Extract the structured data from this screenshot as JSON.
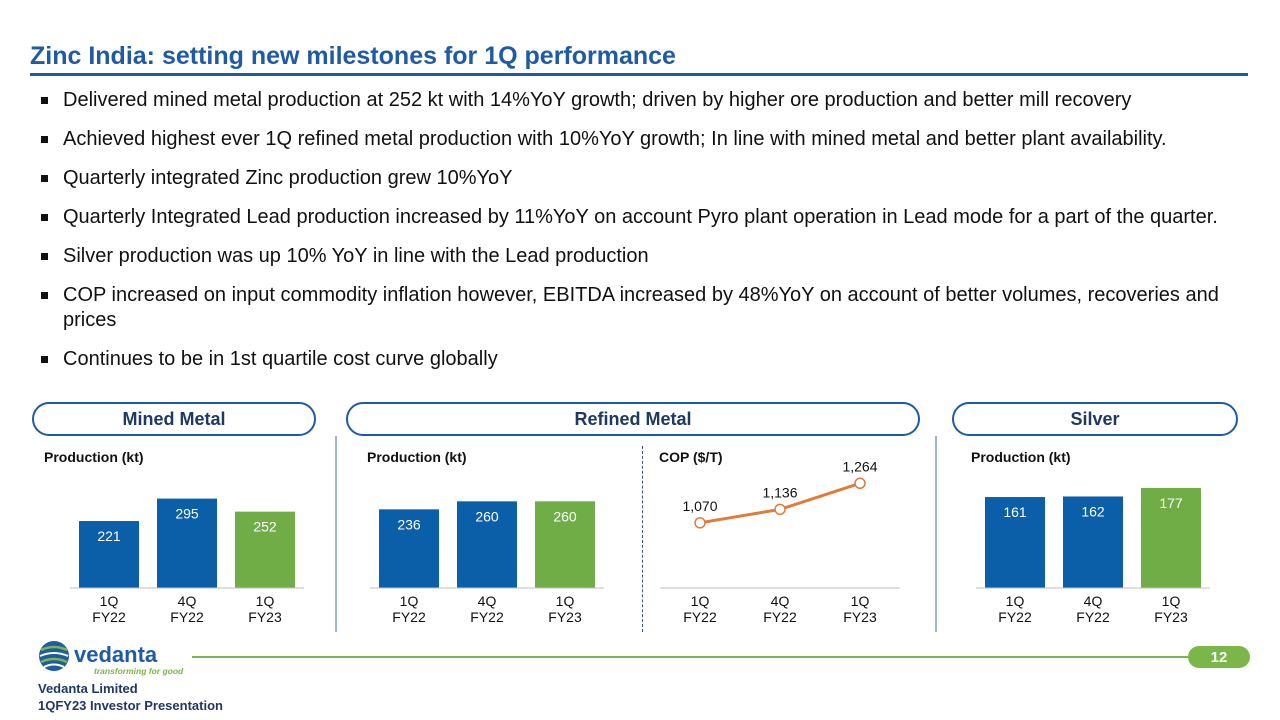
{
  "title": "Zinc India: setting new milestones for 1Q performance",
  "bullets": [
    "Delivered mined metal production at 252 kt with 14%YoY growth; driven by higher ore production and better mill recovery",
    "Achieved highest ever 1Q refined metal production with 10%YoY growth; In line with mined metal and better plant availability.",
    "Quarterly integrated Zinc production grew 10%YoY",
    "Quarterly Integrated Lead production increased by 11%YoY on account Pyro plant operation in Lead mode for a part of the quarter.",
    "Silver production was up 10% YoY in line with the Lead production",
    "COP increased on input commodity inflation however, EBITDA increased by 48%YoY on account of better volumes, recoveries and prices",
    "Continues to be in 1st quartile cost curve globally"
  ],
  "sections": {
    "mined": "Mined Metal",
    "refined": "Refined Metal",
    "silver": "Silver"
  },
  "colors": {
    "blue": "#0b5ea8",
    "green": "#70ad47",
    "orange": "#e07b39",
    "title": "#1f5aa6"
  },
  "chart_data": [
    {
      "id": "mined",
      "type": "bar",
      "title": "Production (kt)",
      "categories": [
        "1Q FY22",
        "4Q FY22",
        "1Q FY23"
      ],
      "values": [
        221,
        295,
        252
      ],
      "labels": [
        "221",
        "295",
        "252"
      ],
      "ylim": [
        0,
        330
      ],
      "grid": false
    },
    {
      "id": "refined",
      "type": "bar",
      "title": "Production (kt)",
      "categories": [
        "1Q FY22",
        "4Q FY22",
        "1Q FY23"
      ],
      "values": [
        236,
        260,
        260
      ],
      "labels": [
        "236",
        "260",
        "260"
      ],
      "ylim": [
        0,
        300
      ],
      "grid": false
    },
    {
      "id": "cop",
      "type": "line",
      "title": "COP ($/T)",
      "categories": [
        "1Q FY22",
        "4Q FY22",
        "1Q FY23"
      ],
      "values": [
        1070,
        1136,
        1264
      ],
      "labels": [
        "1,070",
        "1,136",
        "1,264"
      ],
      "ylim": [
        750,
        1290
      ],
      "grid": false
    },
    {
      "id": "silver",
      "type": "bar",
      "title": "Production (kt)",
      "categories": [
        "1Q FY22",
        "4Q FY22",
        "1Q FY23"
      ],
      "values": [
        161,
        162,
        177
      ],
      "labels": [
        "161",
        "162",
        "177"
      ],
      "ylim": [
        0,
        177
      ],
      "grid": false
    }
  ],
  "footer": {
    "logo_word": "vedanta",
    "tagline": "transforming for good",
    "company": "Vedanta Limited",
    "presentation": "1QFY23 Investor Presentation",
    "page": "12"
  }
}
